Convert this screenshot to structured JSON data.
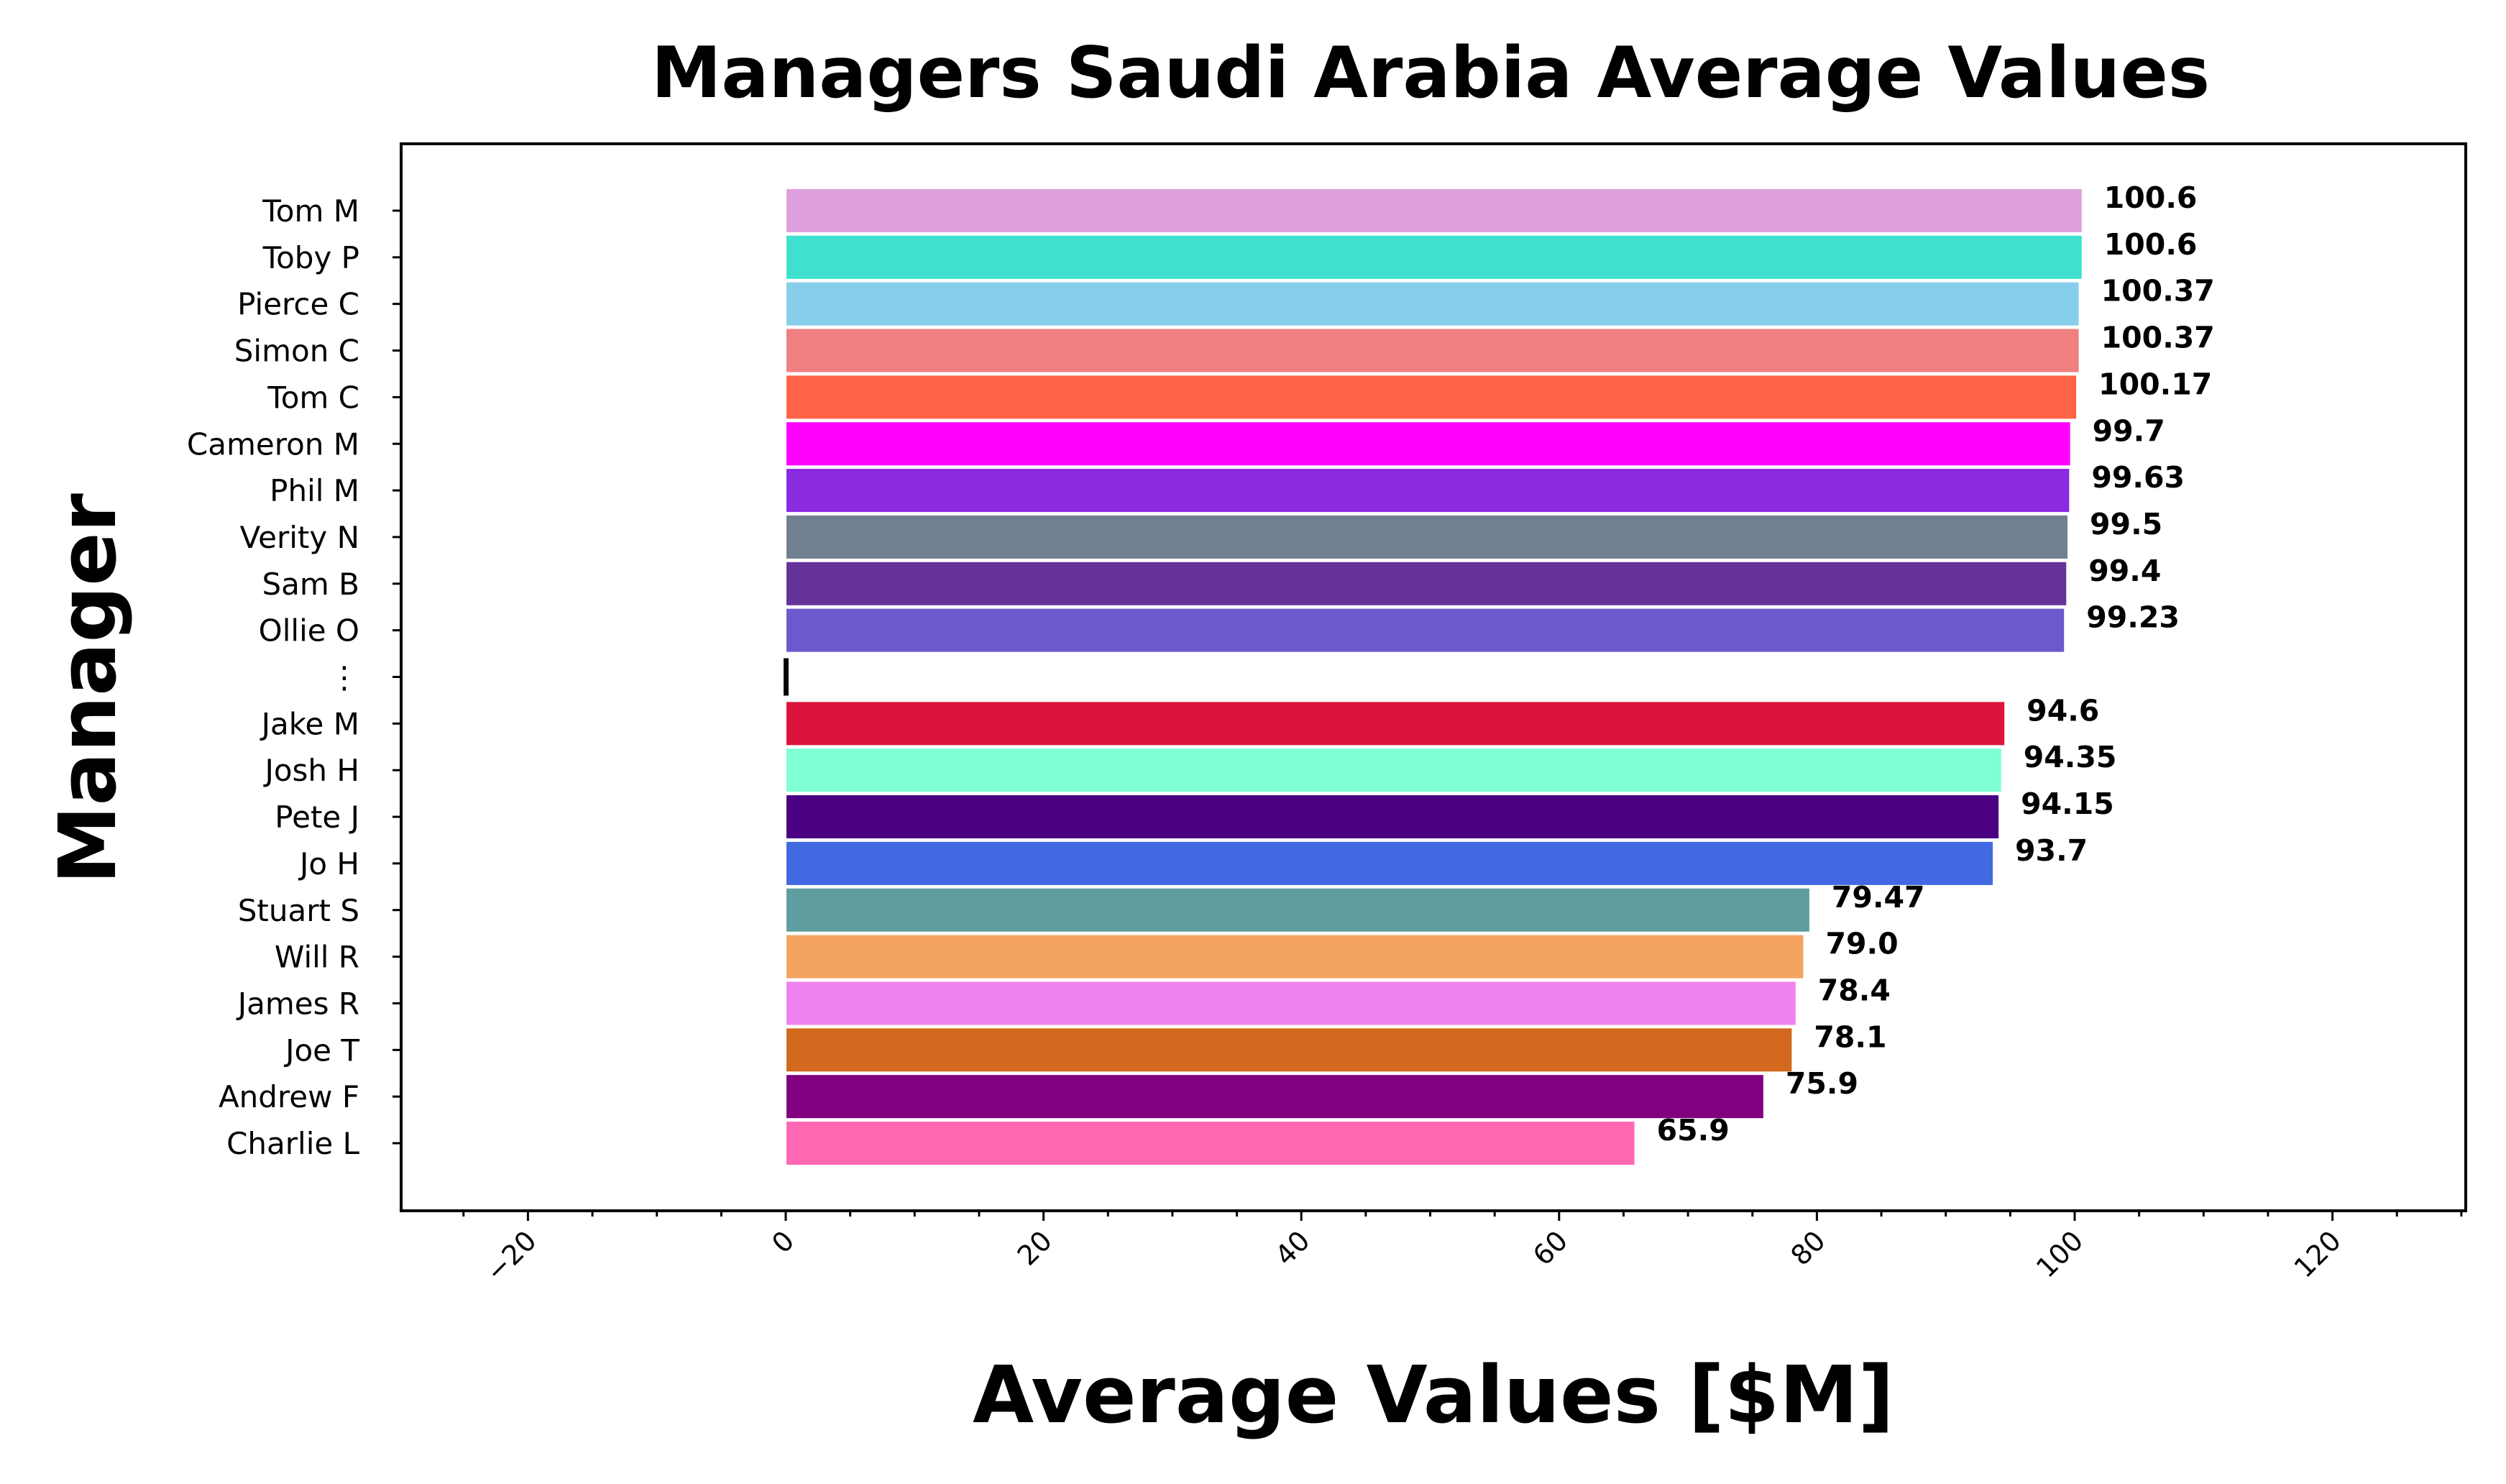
{
  "chart_data": {
    "type": "bar",
    "orientation": "horizontal",
    "title": "Managers Saudi Arabia Average Values",
    "xlabel": "Average Values [$M]",
    "ylabel": "Manager",
    "xlim": [
      -30,
      130
    ],
    "xticks": [
      -20,
      0,
      20,
      40,
      60,
      80,
      100,
      120
    ],
    "grid": false,
    "legend": "none",
    "categories": [
      "Tom M",
      "Toby P",
      "Pierce C",
      "Simon C",
      "Tom C",
      "Cameron M",
      "Phil M",
      "Verity N",
      "Sam B",
      "Ollie O",
      "⋮",
      "Jake M",
      "Josh H",
      "Pete J",
      "Jo H",
      "Stuart S",
      "Will R",
      "James R",
      "Joe T",
      "Andrew F",
      "Charlie L"
    ],
    "values": [
      100.6,
      100.6,
      100.37,
      100.37,
      100.17,
      99.7,
      99.63,
      99.5,
      99.4,
      99.23,
      null,
      94.6,
      94.35,
      94.15,
      93.7,
      79.47,
      79.0,
      78.4,
      78.1,
      75.9,
      65.9
    ],
    "value_labels": [
      "100.6",
      "100.6",
      "100.37",
      "100.37",
      "100.17",
      "99.7",
      "99.63",
      "99.5",
      "99.4",
      "99.23",
      "",
      "94.6",
      "94.35",
      "94.15",
      "93.7",
      "79.47",
      "79.0",
      "78.4",
      "78.1",
      "75.9",
      "65.9"
    ],
    "colors": [
      "#dda0dd",
      "#40e0d0",
      "#87ceeb",
      "#f08080",
      "#ff6347",
      "#ff00ff",
      "#8a2be2",
      "#708090",
      "#663399",
      "#6a5acd",
      "#000000",
      "#dc143c",
      "#7fffd4",
      "#4b0082",
      "#4169e1",
      "#5f9ea0",
      "#f4a460",
      "#ee82ee",
      "#d2691e",
      "#800080",
      "#ff69b4"
    ]
  }
}
